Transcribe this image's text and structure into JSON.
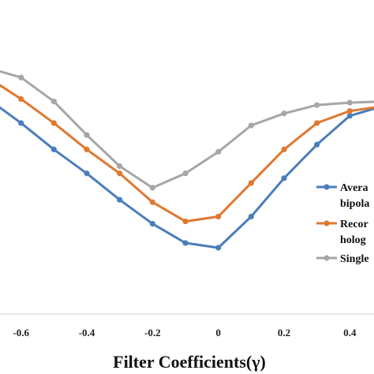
{
  "chart_data": {
    "type": "line",
    "xlabel": "Filter Coefficients(γ)",
    "ylabel": "",
    "title": "",
    "x_ticks": [
      -0.6,
      -0.4,
      -0.2,
      0,
      0.2,
      0.4
    ],
    "x_tick_labels": [
      "-0.6",
      "-0.4",
      "-0.2",
      "0",
      "0.2",
      "0.4"
    ],
    "xlim": [
      -0.7,
      0.5
    ],
    "ylim": [
      0,
      1
    ],
    "grid": false,
    "legend_position": "right",
    "x": [
      -0.7,
      -0.6,
      -0.5,
      -0.4,
      -0.3,
      -0.2,
      -0.1,
      0,
      0.1,
      0.2,
      0.3,
      0.4,
      0.5
    ],
    "series": [
      {
        "name": "Avera bipola",
        "legend_lines": [
          "Avera",
          "bipola"
        ],
        "color": "#4a7ebb",
        "values": [
          0.87,
          0.77,
          0.66,
          0.56,
          0.45,
          0.35,
          0.27,
          0.25,
          0.38,
          0.54,
          0.68,
          0.8,
          0.84
        ]
      },
      {
        "name": "Recor holog",
        "legend_lines": [
          "Recor",
          "holog"
        ],
        "color": "#e07830",
        "values": [
          0.96,
          0.87,
          0.77,
          0.66,
          0.56,
          0.44,
          0.36,
          0.38,
          0.52,
          0.66,
          0.77,
          0.82,
          0.84
        ]
      },
      {
        "name": "Single",
        "legend_lines": [
          "Single"
        ],
        "color": "#a6a6a6",
        "values": [
          1.0,
          0.96,
          0.86,
          0.72,
          0.59,
          0.5,
          0.56,
          0.65,
          0.76,
          0.81,
          0.845,
          0.855,
          0.86
        ]
      }
    ]
  }
}
